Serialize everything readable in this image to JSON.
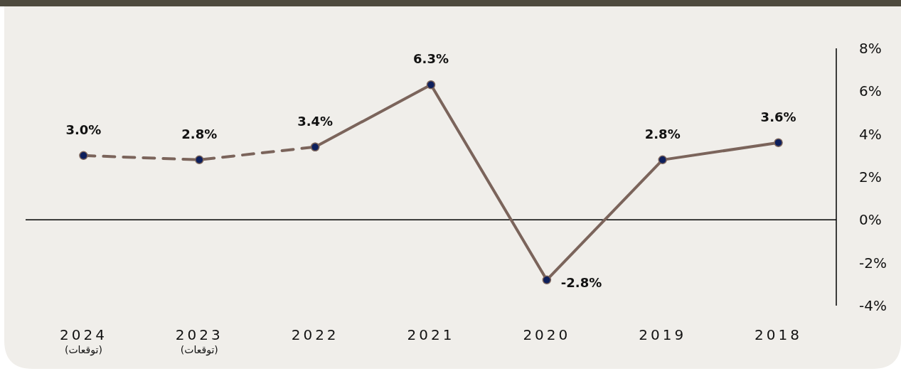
{
  "chart_data": {
    "type": "line",
    "categories": [
      "2024\n(توقعات)",
      "2023\n(توقعات)",
      "2022",
      "2021",
      "2020",
      "2019",
      "2018"
    ],
    "series": [
      {
        "color": "#7b645b",
        "line_style": "dashed",
        "values": [
          3.0,
          2.8,
          3.4,
          null,
          null,
          null,
          null
        ],
        "value_labels": [
          "3.0%",
          "2.8%",
          null,
          null,
          null,
          null,
          null
        ]
      },
      {
        "color": "#7b645b",
        "line_style": "solid",
        "values": [
          null,
          null,
          3.4,
          6.3,
          -2.8,
          2.8,
          3.6
        ],
        "value_labels": [
          null,
          null,
          "3.4%",
          "6.3%",
          "-2.8%",
          "2.8%",
          "3.6%"
        ]
      }
    ],
    "marker": "circle",
    "ylim": [
      -4,
      8
    ],
    "yticks": [
      {
        "value": -4,
        "label": "-4%"
      },
      {
        "value": -2,
        "label": "-2%"
      },
      {
        "value": 0,
        "label": "0%"
      },
      {
        "value": 2,
        "label": "2%"
      },
      {
        "value": 4,
        "label": "4%"
      },
      {
        "value": 6,
        "label": "6%"
      },
      {
        "value": 8,
        "label": "8%"
      }
    ]
  }
}
